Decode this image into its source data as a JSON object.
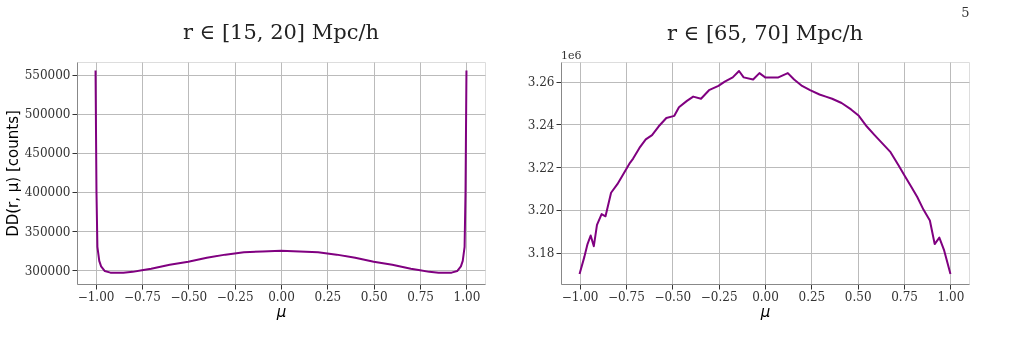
{
  "chart_data": [
    {
      "type": "line",
      "title": "r ∈ [15, 20] Mpc/h",
      "xlabel": "μ",
      "ylabel": "DD(r, μ) [counts]",
      "x": [
        -1,
        -0.995,
        -0.99,
        -0.98,
        -0.97,
        -0.95,
        -0.92,
        -0.9,
        -0.85,
        -0.8,
        -0.75,
        -0.7,
        -0.6,
        -0.5,
        -0.4,
        -0.3,
        -0.2,
        -0.1,
        0,
        0.1,
        0.2,
        0.3,
        0.4,
        0.5,
        0.6,
        0.7,
        0.75,
        0.8,
        0.85,
        0.9,
        0.92,
        0.95,
        0.97,
        0.98,
        0.99,
        0.995,
        1
      ],
      "series": [
        {
          "color": "#800080",
          "values": [
            555000,
            400000,
            330000,
            312000,
            305000,
            299000,
            297000,
            297000,
            297000,
            298000,
            300000,
            302000,
            307000,
            311000,
            316000,
            320000,
            323000,
            324000,
            325000,
            324000,
            323000,
            320000,
            316000,
            311000,
            307000,
            302000,
            300000,
            298000,
            297000,
            297000,
            297000,
            299000,
            305000,
            312000,
            330000,
            400000,
            555000
          ]
        }
      ],
      "xlim": [
        -1.1,
        1.1
      ],
      "xticks": [
        {
          "value": -1,
          "label": "−1.00"
        },
        -0.75,
        {
          "value": -0.5,
          "label": "−0.50"
        },
        -0.25,
        {
          "value": 0,
          "label": "0.00"
        },
        0.25,
        {
          "value": 0.5,
          "label": "0.50"
        },
        0.75,
        {
          "value": 1,
          "label": "1.00"
        }
      ],
      "ylim": [
        282500,
        566000
      ],
      "yticks": [
        300000,
        350000,
        400000,
        450000,
        500000,
        550000
      ],
      "grid": true,
      "marker": "none",
      "line_style": "solid",
      "legend": false
    },
    {
      "type": "line",
      "title": "r ∈ [65, 70] Mpc/h",
      "xlabel": "μ",
      "annotations": [
        "1e6",
        "5"
      ],
      "x": [
        -1,
        -0.974,
        -0.957,
        -0.94,
        -0.923,
        -0.906,
        -0.881,
        -0.86,
        -0.83,
        -0.796,
        -0.762,
        -0.728,
        -0.711,
        -0.677,
        -0.643,
        -0.609,
        -0.574,
        -0.532,
        -0.489,
        -0.464,
        -0.421,
        -0.387,
        -0.345,
        -0.302,
        -0.251,
        -0.217,
        -0.174,
        -0.14,
        -0.115,
        -0.064,
        -0.03,
        0.001,
        0.03,
        0.072,
        0.123,
        0.157,
        0.2,
        0.243,
        0.294,
        0.328,
        0.362,
        0.413,
        0.464,
        0.506,
        0.549,
        0.591,
        0.634,
        0.677,
        0.719,
        0.753,
        0.787,
        0.821,
        0.855,
        0.889,
        0.915,
        0.94,
        0.966,
        1
      ],
      "series": [
        {
          "color": "#800080",
          "values": [
            3.17,
            3.178,
            3.184,
            3.188,
            3.183,
            3.193,
            3.198,
            3.197,
            3.208,
            3.212,
            3.217,
            3.222,
            3.224,
            3.229,
            3.233,
            3.235,
            3.239,
            3.243,
            3.244,
            3.248,
            3.251,
            3.253,
            3.252,
            3.256,
            3.258,
            3.26,
            3.262,
            3.265,
            3.262,
            3.261,
            3.264,
            3.262,
            3.262,
            3.262,
            3.264,
            3.261,
            3.258,
            3.256,
            3.254,
            3.253,
            3.252,
            3.25,
            3.247,
            3.244,
            3.239,
            3.235,
            3.231,
            3.227,
            3.221,
            3.216,
            3.211,
            3.206,
            3.2,
            3.195,
            3.184,
            3.187,
            3.181,
            3.17
          ]
        }
      ],
      "xlim": [
        -1.1,
        1.1
      ],
      "xticks": [
        {
          "value": -1,
          "label": "−1.00"
        },
        -0.75,
        {
          "value": -0.5,
          "label": "−0.50"
        },
        -0.25,
        {
          "value": 0,
          "label": "0.00"
        },
        0.25,
        {
          "value": 0.5,
          "label": "0.50"
        },
        0.75,
        {
          "value": 1,
          "label": "1.00"
        }
      ],
      "ylim": [
        3.1653,
        3.2692
      ],
      "yticks": [
        3.18,
        {
          "value": 3.2,
          "label": "3.20"
        },
        3.22,
        3.24,
        3.26
      ],
      "grid": true,
      "marker": "none",
      "line_style": "solid",
      "legend": false
    }
  ]
}
